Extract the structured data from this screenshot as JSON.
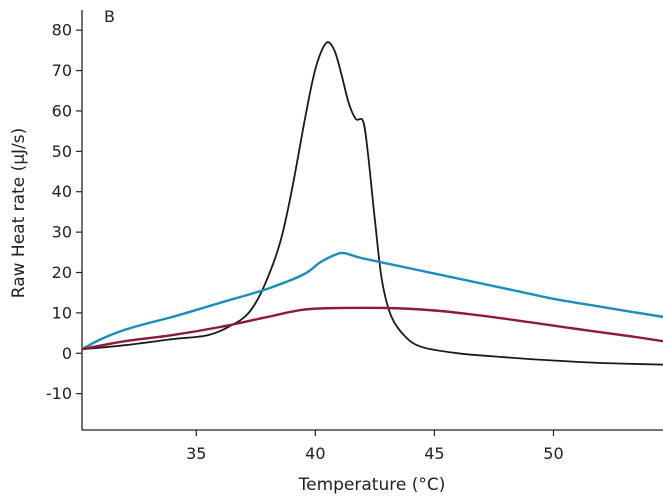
{
  "chart_data": {
    "type": "line",
    "panel_label": "B",
    "xlabel": "Temperature (°C)",
    "ylabel": "Raw Heat rate (µJ/s)",
    "xlim": [
      30.2,
      54.6
    ],
    "ylim": [
      -19,
      85
    ],
    "xticks": [
      35,
      40,
      45,
      50
    ],
    "yticks": [
      -10,
      0,
      10,
      20,
      30,
      40,
      50,
      60,
      70,
      80
    ],
    "grid": false,
    "legend": "none",
    "series": [
      {
        "color": "#1a1a1a",
        "points": [
          [
            30.2,
            1
          ],
          [
            32,
            2
          ],
          [
            34,
            3.5
          ],
          [
            35.5,
            4.5
          ],
          [
            36.5,
            7
          ],
          [
            37.2,
            10
          ],
          [
            37.8,
            16
          ],
          [
            38.5,
            27
          ],
          [
            39,
            40
          ],
          [
            39.5,
            56
          ],
          [
            39.9,
            68
          ],
          [
            40.2,
            74
          ],
          [
            40.5,
            77
          ],
          [
            40.8,
            75
          ],
          [
            41.1,
            69
          ],
          [
            41.4,
            62
          ],
          [
            41.7,
            58
          ],
          [
            42,
            57.5
          ],
          [
            42.2,
            50
          ],
          [
            42.5,
            33
          ],
          [
            42.8,
            18
          ],
          [
            43.2,
            9
          ],
          [
            43.8,
            4
          ],
          [
            44.5,
            1.5
          ],
          [
            46,
            0
          ],
          [
            48,
            -1
          ],
          [
            50,
            -1.8
          ],
          [
            52,
            -2.4
          ],
          [
            54.6,
            -2.8
          ]
        ]
      },
      {
        "color": "#1e8cc0",
        "points": [
          [
            30.2,
            1
          ],
          [
            31,
            3.5
          ],
          [
            32,
            5.8
          ],
          [
            33,
            7.5
          ],
          [
            34,
            9
          ],
          [
            36,
            12.5
          ],
          [
            38,
            16
          ],
          [
            39.5,
            19.5
          ],
          [
            40.2,
            22.5
          ],
          [
            40.8,
            24.3
          ],
          [
            41.2,
            24.8
          ],
          [
            42,
            23.5
          ],
          [
            44,
            21
          ],
          [
            46,
            18.5
          ],
          [
            48,
            16
          ],
          [
            50,
            13.5
          ],
          [
            52,
            11.5
          ],
          [
            54.6,
            9
          ]
        ]
      },
      {
        "color": "#8b1c3c",
        "points": [
          [
            30.2,
            1
          ],
          [
            32,
            3
          ],
          [
            34,
            4.5
          ],
          [
            36,
            6.5
          ],
          [
            38,
            9
          ],
          [
            39.5,
            10.8
          ],
          [
            41,
            11.2
          ],
          [
            43,
            11.2
          ],
          [
            45,
            10.6
          ],
          [
            47,
            9.3
          ],
          [
            49,
            7.7
          ],
          [
            51,
            6
          ],
          [
            53,
            4.4
          ],
          [
            54.6,
            3
          ]
        ]
      }
    ]
  }
}
